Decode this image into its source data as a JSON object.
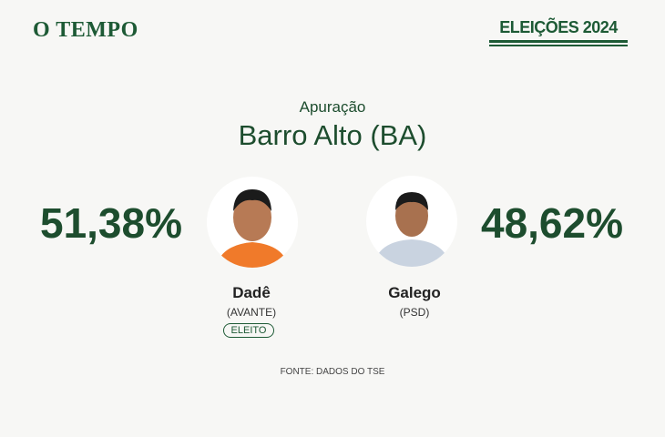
{
  "header": {
    "logo": "O TEMPO",
    "badge": "ELEIÇÕES 2024"
  },
  "title": {
    "kicker": "Apuração",
    "place": "Barro Alto (BA)"
  },
  "candidates": [
    {
      "name": "Dadê",
      "party": "(AVANTE)",
      "percent": "51,38%",
      "status": "ELEITO"
    },
    {
      "name": "Galego",
      "party": "(PSD)",
      "percent": "48,62%"
    }
  ],
  "footer": {
    "source": "FONTE: DADOS DO TSE"
  }
}
